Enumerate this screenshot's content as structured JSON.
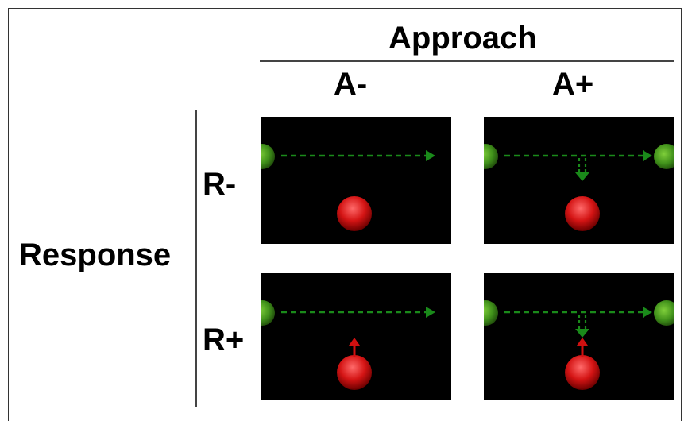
{
  "column_header": {
    "title": "Approach",
    "a_minus": "A-",
    "a_plus": "A+"
  },
  "row_header": {
    "title": "Response",
    "r_minus": "R-",
    "r_plus": "R+"
  },
  "colors": {
    "panel_background": "#000000",
    "green_ball": "#3f8f1a",
    "red_ball": "#d41414",
    "green_arrow": "#1a8a1a",
    "red_arrow": "#d01010"
  },
  "panels": [
    {
      "id": "A-R-",
      "approach": "A-",
      "response": "R-",
      "deflect_arrow": false,
      "red_arrow": false,
      "right_green_ball": false
    },
    {
      "id": "A+R-",
      "approach": "A+",
      "response": "R-",
      "deflect_arrow": true,
      "red_arrow": false,
      "right_green_ball": true
    },
    {
      "id": "A-R+",
      "approach": "A-",
      "response": "R+",
      "deflect_arrow": false,
      "red_arrow": true,
      "right_green_ball": false
    },
    {
      "id": "A+R+",
      "approach": "A+",
      "response": "R+",
      "deflect_arrow": true,
      "red_arrow": true,
      "right_green_ball": true
    }
  ]
}
